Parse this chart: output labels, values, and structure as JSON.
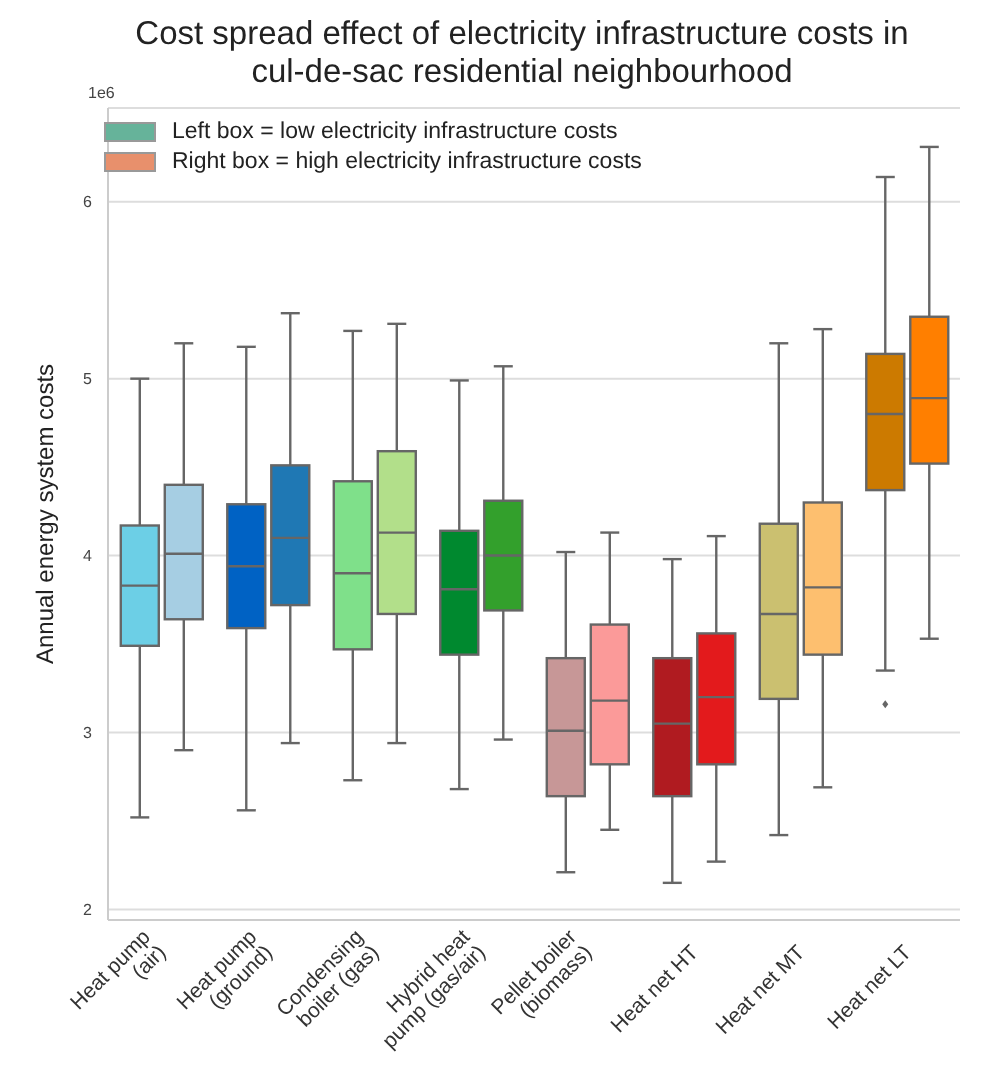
{
  "chart_data": {
    "type": "box",
    "title": "Cost spread effect of electricity infrastructure costs in\ncul-de-sac residential neighbourhood",
    "ylabel": "Annual energy system costs",
    "annotations": [
      "1e6",
      "Left box = low electricity infrastructure costs",
      "Right box = high electricity infrastructure costs"
    ],
    "categories": [
      "Heat pump\n(air)",
      "Heat pump\n(ground)",
      "Condensing\nboiler (gas)",
      "Hybrid heat\npump (gas/air)",
      "Pellet boiler\n(biomass)",
      "Heat net HT",
      "Heat net MT",
      "Heat net LT"
    ],
    "ylim": [
      1.94,
      6.53
    ],
    "yticks": [
      2,
      3,
      4,
      5,
      6
    ],
    "grid": "y",
    "series": [
      {
        "color": "#66b39a",
        "colors": [
          "#6ccfe6",
          "#0062c4",
          "#7fe08a",
          "#00892f",
          "#c79797",
          "#b01b20",
          "#cbc070",
          "#cc7a00"
        ],
        "boxes": [
          {
            "low": 2.52,
            "q1": 3.49,
            "median": 3.83,
            "q3": 4.17,
            "high": 5.0
          },
          {
            "low": 2.56,
            "q1": 3.59,
            "median": 3.94,
            "q3": 4.29,
            "high": 5.18
          },
          {
            "low": 2.73,
            "q1": 3.47,
            "median": 3.9,
            "q3": 4.42,
            "high": 5.27
          },
          {
            "low": 2.68,
            "q1": 3.44,
            "median": 3.81,
            "q3": 4.14,
            "high": 4.99
          },
          {
            "low": 2.21,
            "q1": 2.64,
            "median": 3.01,
            "q3": 3.42,
            "high": 4.02
          },
          {
            "low": 2.15,
            "q1": 2.64,
            "median": 3.05,
            "q3": 3.42,
            "high": 3.98
          },
          {
            "low": 2.42,
            "q1": 3.19,
            "median": 3.67,
            "q3": 4.18,
            "high": 5.2
          },
          {
            "low": 3.35,
            "q1": 4.37,
            "median": 4.8,
            "q3": 5.14,
            "high": 6.14,
            "outliers": [
              3.16
            ]
          }
        ]
      },
      {
        "color": "#e8906c",
        "colors": [
          "#a6cee3",
          "#1f78b4",
          "#b2df8a",
          "#33a02c",
          "#fb9a99",
          "#e31a1c",
          "#fdbf6f",
          "#ff7f00"
        ],
        "boxes": [
          {
            "low": 2.9,
            "q1": 3.64,
            "median": 4.01,
            "q3": 4.4,
            "high": 5.2
          },
          {
            "low": 2.94,
            "q1": 3.72,
            "median": 4.1,
            "q3": 4.51,
            "high": 5.37
          },
          {
            "low": 2.94,
            "q1": 3.67,
            "median": 4.13,
            "q3": 4.59,
            "high": 5.31
          },
          {
            "low": 2.96,
            "q1": 3.69,
            "median": 4.0,
            "q3": 4.31,
            "high": 5.07
          },
          {
            "low": 2.45,
            "q1": 2.82,
            "median": 3.18,
            "q3": 3.61,
            "high": 4.13
          },
          {
            "low": 2.27,
            "q1": 2.82,
            "median": 3.2,
            "q3": 3.56,
            "high": 4.11
          },
          {
            "low": 2.69,
            "q1": 3.44,
            "median": 3.82,
            "q3": 4.3,
            "high": 5.28
          },
          {
            "low": 3.53,
            "q1": 4.52,
            "median": 4.89,
            "q3": 5.35,
            "high": 6.31
          }
        ]
      }
    ]
  }
}
